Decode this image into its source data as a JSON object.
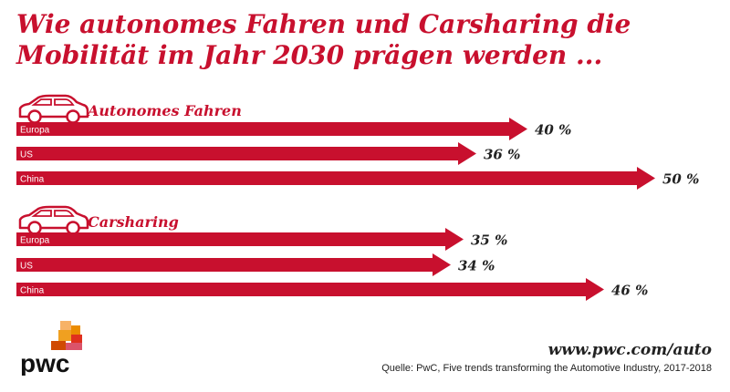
{
  "title": "Wie autonomes Fahren und Carsharing die Mobilität im Jahr 2030 prägen werden ...",
  "colors": {
    "accent": "#c8102e",
    "text": "#222222"
  },
  "chart_data": [
    {
      "type": "bar",
      "orientation": "horizontal",
      "title": "Autonomes Fahren",
      "icon": "car-icon",
      "categories": [
        "Europa",
        "US",
        "China"
      ],
      "values": [
        40,
        36,
        50
      ],
      "value_labels": [
        "40 %",
        "36 %",
        "50 %"
      ],
      "xlim": [
        0,
        50
      ]
    },
    {
      "type": "bar",
      "orientation": "horizontal",
      "title": "Carsharing",
      "icon": "car-icon",
      "categories": [
        "Europa",
        "US",
        "China"
      ],
      "values": [
        35,
        34,
        46
      ],
      "value_labels": [
        "35 %",
        "34 %",
        "46 %"
      ],
      "xlim": [
        0,
        50
      ]
    }
  ],
  "footer": {
    "url": "www.pwc.com/auto",
    "source": "Quelle: PwC, Five trends transforming the Automotive Industry, 2017-2018"
  },
  "logo": {
    "text": "pwc"
  }
}
